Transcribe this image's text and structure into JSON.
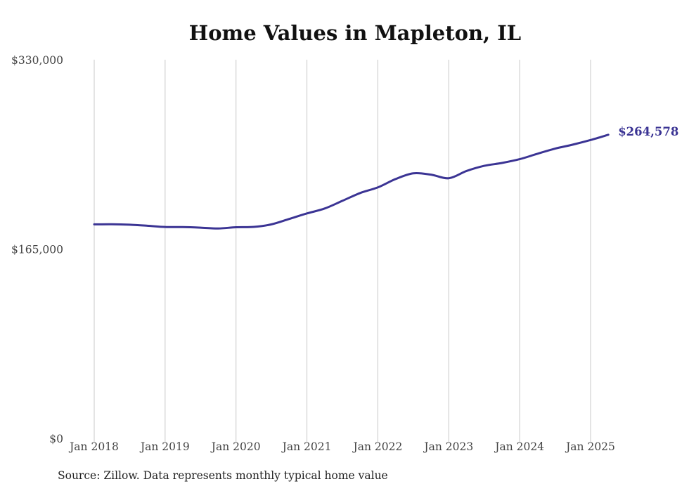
{
  "title": "Home Values in Mapleton, IL",
  "source": "Source: Zillow. Data represents monthly typical home value",
  "colors": {
    "line": "#3b3494",
    "grid": "#c8c8c8",
    "tick_text": "#444444"
  },
  "chart_data": {
    "type": "line",
    "title": "Home Values in Mapleton, IL",
    "xlabel": "",
    "ylabel": "",
    "ylim": [
      0,
      330000
    ],
    "yticks": [
      0,
      165000,
      330000
    ],
    "ytick_labels": [
      "$0",
      "$165,000",
      "$330,000"
    ],
    "xticks": [
      "2018-01",
      "2019-01",
      "2020-01",
      "2021-01",
      "2022-01",
      "2023-01",
      "2024-01",
      "2025-01"
    ],
    "xtick_labels": [
      "Jan 2018",
      "Jan 2019",
      "Jan 2020",
      "Jan 2021",
      "Jan 2022",
      "Jan 2023",
      "Jan 2024",
      "Jan 2025"
    ],
    "grid": "vertical",
    "end_label": "$264,578",
    "series": [
      {
        "values": [
          {
            "x": "2018-01",
            "y": 186500
          },
          {
            "x": "2018-04",
            "y": 186600
          },
          {
            "x": "2018-07",
            "y": 186200
          },
          {
            "x": "2018-10",
            "y": 185300
          },
          {
            "x": "2019-01",
            "y": 184200
          },
          {
            "x": "2019-04",
            "y": 184100
          },
          {
            "x": "2019-07",
            "y": 183600
          },
          {
            "x": "2019-10",
            "y": 182900
          },
          {
            "x": "2020-01",
            "y": 184000
          },
          {
            "x": "2020-04",
            "y": 184300
          },
          {
            "x": "2020-07",
            "y": 186500
          },
          {
            "x": "2020-10",
            "y": 191200
          },
          {
            "x": "2021-01",
            "y": 196000
          },
          {
            "x": "2021-04",
            "y": 200300
          },
          {
            "x": "2021-07",
            "y": 207000
          },
          {
            "x": "2021-10",
            "y": 213800
          },
          {
            "x": "2022-01",
            "y": 218700
          },
          {
            "x": "2022-04",
            "y": 226000
          },
          {
            "x": "2022-07",
            "y": 231000
          },
          {
            "x": "2022-10",
            "y": 229800
          },
          {
            "x": "2023-01",
            "y": 226700
          },
          {
            "x": "2023-04",
            "y": 233000
          },
          {
            "x": "2023-07",
            "y": 237500
          },
          {
            "x": "2023-10",
            "y": 240000
          },
          {
            "x": "2024-01",
            "y": 243300
          },
          {
            "x": "2024-04",
            "y": 248000
          },
          {
            "x": "2024-07",
            "y": 252500
          },
          {
            "x": "2024-10",
            "y": 256000
          },
          {
            "x": "2025-01",
            "y": 260000
          },
          {
            "x": "2025-04",
            "y": 264578
          }
        ]
      }
    ]
  }
}
